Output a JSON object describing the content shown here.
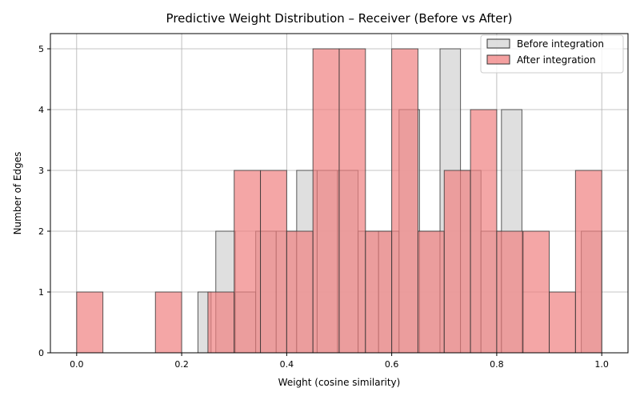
{
  "colors": {
    "before_fill": "#d9d9d9",
    "after_fill": "#f08080",
    "edge": "#333333",
    "grid": "#b0b0b0",
    "legend_border": "#cccccc"
  },
  "chart_data": {
    "type": "bar",
    "subtype": "overlaid histogram",
    "title": "Predictive Weight Distribution – Receiver (Before vs After)",
    "xlabel": "Weight (cosine similarity)",
    "ylabel": "Number of Edges",
    "xlim": [
      -0.05,
      1.05
    ],
    "ylim": [
      0,
      5.25
    ],
    "xticks": [
      0.0,
      0.2,
      0.4,
      0.6,
      0.8,
      1.0
    ],
    "xtick_labels": [
      "0.0",
      "0.2",
      "0.4",
      "0.6",
      "0.8",
      "1.0"
    ],
    "yticks": [
      0,
      1,
      2,
      3,
      4,
      5
    ],
    "ytick_labels": [
      "0",
      "1",
      "2",
      "3",
      "4",
      "5"
    ],
    "grid": true,
    "legend_position": "top-right",
    "series": [
      {
        "name": "Before integration",
        "bins": [
          {
            "x0": 0.231,
            "x1": 0.256,
            "count": 1
          },
          {
            "x0": 0.265,
            "x1": 0.302,
            "count": 2
          },
          {
            "x0": 0.302,
            "x1": 0.341,
            "count": 1
          },
          {
            "x0": 0.341,
            "x1": 0.38,
            "count": 2
          },
          {
            "x0": 0.38,
            "x1": 0.419,
            "count": 2
          },
          {
            "x0": 0.419,
            "x1": 0.458,
            "count": 3
          },
          {
            "x0": 0.458,
            "x1": 0.497,
            "count": 3
          },
          {
            "x0": 0.497,
            "x1": 0.536,
            "count": 3
          },
          {
            "x0": 0.536,
            "x1": 0.575,
            "count": 2
          },
          {
            "x0": 0.575,
            "x1": 0.614,
            "count": 2
          },
          {
            "x0": 0.614,
            "x1": 0.653,
            "count": 4
          },
          {
            "x0": 0.653,
            "x1": 0.692,
            "count": 2
          },
          {
            "x0": 0.692,
            "x1": 0.731,
            "count": 5
          },
          {
            "x0": 0.731,
            "x1": 0.77,
            "count": 3
          },
          {
            "x0": 0.77,
            "x1": 0.809,
            "count": 2
          },
          {
            "x0": 0.809,
            "x1": 0.848,
            "count": 4
          },
          {
            "x0": 0.961,
            "x1": 1.0,
            "count": 2
          }
        ]
      },
      {
        "name": "After integration",
        "bins": [
          {
            "x0": 0.0,
            "x1": 0.05,
            "count": 1
          },
          {
            "x0": 0.15,
            "x1": 0.2,
            "count": 1
          },
          {
            "x0": 0.25,
            "x1": 0.3,
            "count": 1
          },
          {
            "x0": 0.3,
            "x1": 0.35,
            "count": 3
          },
          {
            "x0": 0.35,
            "x1": 0.4,
            "count": 3
          },
          {
            "x0": 0.4,
            "x1": 0.45,
            "count": 2
          },
          {
            "x0": 0.45,
            "x1": 0.5,
            "count": 5
          },
          {
            "x0": 0.5,
            "x1": 0.55,
            "count": 5
          },
          {
            "x0": 0.55,
            "x1": 0.6,
            "count": 2
          },
          {
            "x0": 0.6,
            "x1": 0.65,
            "count": 5
          },
          {
            "x0": 0.65,
            "x1": 0.7,
            "count": 2
          },
          {
            "x0": 0.7,
            "x1": 0.75,
            "count": 3
          },
          {
            "x0": 0.75,
            "x1": 0.8,
            "count": 4
          },
          {
            "x0": 0.8,
            "x1": 0.85,
            "count": 2
          },
          {
            "x0": 0.85,
            "x1": 0.9,
            "count": 2
          },
          {
            "x0": 0.9,
            "x1": 0.95,
            "count": 1
          },
          {
            "x0": 0.95,
            "x1": 1.0,
            "count": 3
          }
        ]
      }
    ]
  }
}
